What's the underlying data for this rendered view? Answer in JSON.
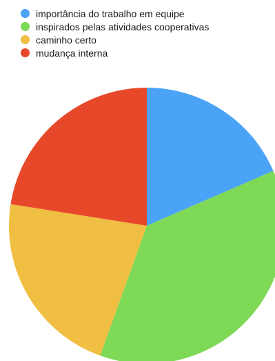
{
  "chart_data": {
    "type": "pie",
    "title": "",
    "start_angle": "12 o'clock",
    "direction": "clockwise",
    "legend_position": "top-left",
    "slices": [
      {
        "label": "importância do trabalho em equipe",
        "value": 18.5,
        "color": "#4aa3f6"
      },
      {
        "label": "inspirados pelas atividades cooperativas",
        "value": 37,
        "color": "#7ed957"
      },
      {
        "label": "caminho certo",
        "value": 22,
        "color": "#f0be42"
      },
      {
        "label": "mudança interna",
        "value": 22.5,
        "color": "#e8482a"
      }
    ]
  }
}
